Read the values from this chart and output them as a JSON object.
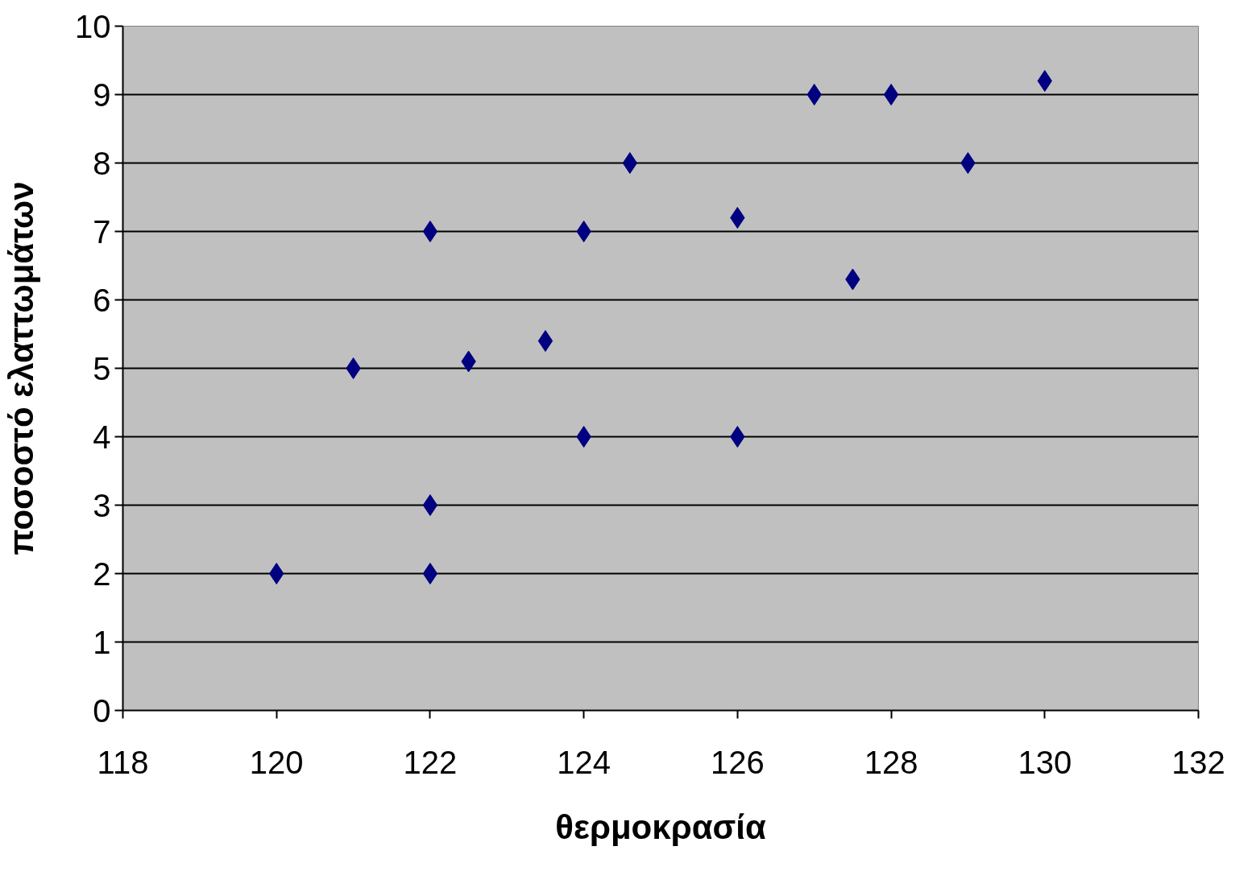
{
  "chart_data": {
    "type": "scatter",
    "xlabel": "θερμοκρασία",
    "ylabel": "ποσοστό ελαττωμάτων",
    "x": [
      120,
      121,
      122,
      122,
      122,
      122.5,
      123.5,
      124,
      124,
      124.6,
      126,
      126,
      127,
      127.5,
      128,
      129,
      130
    ],
    "series": [
      {
        "color": "#000080",
        "values": [
          2,
          5,
          7,
          3,
          2,
          5.1,
          5.4,
          7,
          4,
          8,
          7.2,
          4,
          9,
          6.3,
          9,
          8,
          9.2
        ]
      }
    ],
    "xlim": [
      118,
      132
    ],
    "xticks": [
      118,
      120,
      122,
      124,
      126,
      128,
      130,
      132
    ],
    "ylim": [
      0,
      10
    ],
    "yticks": [
      0,
      1,
      2,
      3,
      4,
      5,
      6,
      7,
      8,
      9,
      10
    ],
    "grid": "y",
    "marker": "diamond"
  }
}
